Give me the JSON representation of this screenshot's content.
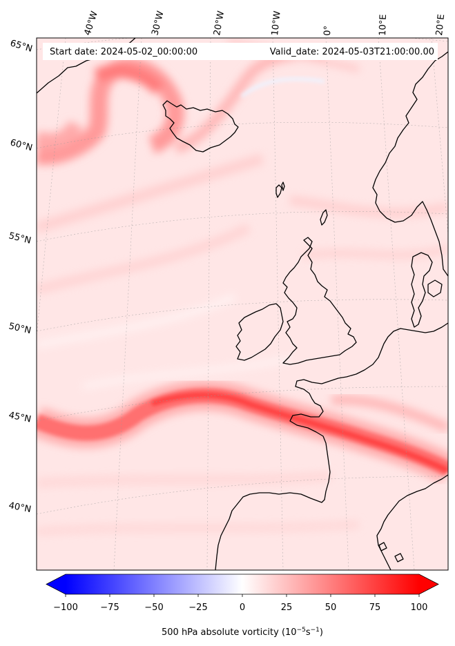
{
  "header": {
    "start_date": "Start date: 2024-05-02_00:00:00",
    "valid_date": "Valid_date: 2024-05-03T21:00:00.00"
  },
  "map": {
    "projection": "lambert-conformal",
    "lon_labels": [
      "40°W",
      "30°W",
      "20°W",
      "10°W",
      "0°",
      "10°E",
      "20°E"
    ],
    "lat_labels": [
      "65°N",
      "60°N",
      "55°N",
      "50°N",
      "45°N",
      "40°N"
    ],
    "gridlines": true,
    "coastline_color": "#000000"
  },
  "field": {
    "variable": "500 hPa absolute vorticity",
    "colormap": "bwr",
    "features": [
      "jet-streak-icelandic-low",
      "zonal-vorticity-band-45N",
      "weak-positive-background"
    ]
  },
  "colorbar": {
    "ticks": [
      "−100",
      "−75",
      "−50",
      "−25",
      "0",
      "25",
      "50",
      "75",
      "100"
    ],
    "values": [
      -100,
      -75,
      -50,
      -25,
      0,
      25,
      50,
      75,
      100
    ],
    "label_main": "500 hPa absolute vorticity (10",
    "label_exp1": "−5",
    "label_mid": "s",
    "label_exp2": "−1",
    "label_end": ")",
    "min_color": "#0000ff",
    "mid_color": "#ffffff",
    "max_color": "#ff0000"
  }
}
